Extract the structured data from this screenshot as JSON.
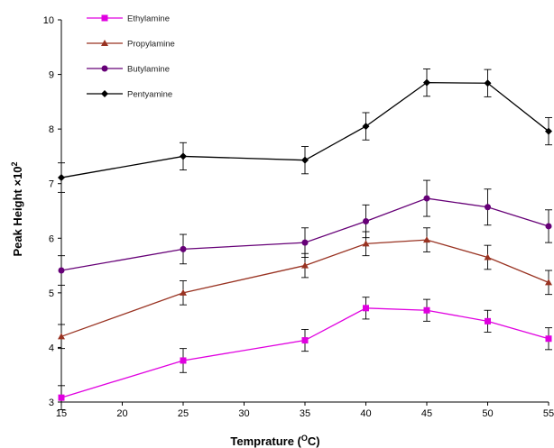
{
  "chart_data": {
    "type": "line",
    "title": "",
    "xlabel": "Temprature (",
    "xlabel_sup": "O",
    "xlabel_end": "C)",
    "ylabel": "Peak Height ×10",
    "ylabel_sup": "2",
    "x": [
      15,
      25,
      35,
      40,
      45,
      50,
      55
    ],
    "xlim": [
      15,
      55
    ],
    "ylim": [
      3,
      10
    ],
    "x_ticks": [
      "15",
      "20",
      "25",
      "30",
      "35",
      "40",
      "45",
      "50",
      "55"
    ],
    "y_ticks": [
      "3",
      "4",
      "5",
      "6",
      "7",
      "8",
      "9",
      "10"
    ],
    "grid": false,
    "legend_position": "top-left",
    "series": [
      {
        "name": "Ethylamine",
        "color": "#e000e0",
        "marker": "square",
        "values": [
          3.08,
          3.76,
          4.13,
          4.72,
          4.68,
          4.48,
          4.16
        ],
        "errors": [
          0.22,
          0.22,
          0.2,
          0.2,
          0.2,
          0.2,
          0.2
        ]
      },
      {
        "name": "Propylamine",
        "color": "#993322",
        "marker": "triangle",
        "values": [
          4.2,
          5.0,
          5.5,
          5.9,
          5.97,
          5.65,
          5.19
        ],
        "errors": [
          0.22,
          0.22,
          0.22,
          0.22,
          0.22,
          0.22,
          0.22
        ]
      },
      {
        "name": "Butylamine",
        "color": "#660077",
        "marker": "circle",
        "values": [
          5.41,
          5.8,
          5.92,
          6.31,
          6.73,
          6.57,
          6.22
        ],
        "errors": [
          0.27,
          0.27,
          0.27,
          0.3,
          0.33,
          0.33,
          0.3
        ]
      },
      {
        "name": "Pentyamine",
        "color": "#000000",
        "marker": "diamond",
        "values": [
          7.11,
          7.5,
          7.43,
          8.05,
          8.85,
          8.84,
          7.96
        ],
        "errors": [
          0.27,
          0.25,
          0.25,
          0.25,
          0.25,
          0.25,
          0.25
        ]
      }
    ]
  }
}
